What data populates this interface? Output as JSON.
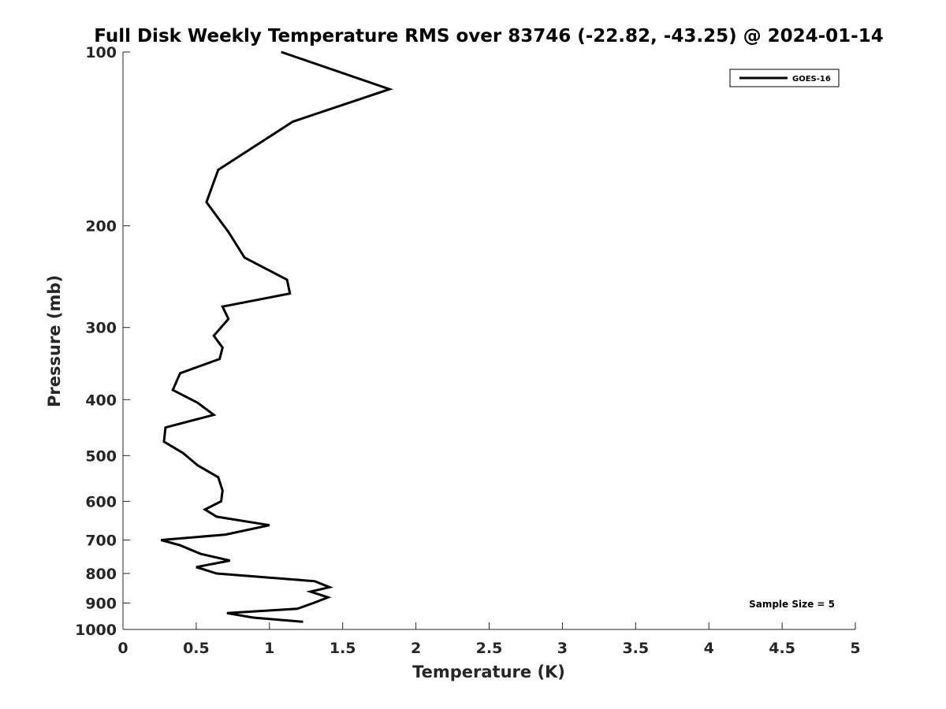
{
  "chart_data": {
    "type": "line",
    "title": "Full Disk Weekly Temperature RMS over 83746 (-22.82, -43.25) @ 2024-01-14",
    "xlabel": "Temperature (K)",
    "ylabel": "Pressure (mb)",
    "xlim": [
      0,
      5
    ],
    "ylim": [
      100,
      1000
    ],
    "y_scale": "log",
    "y_reversed": true,
    "grid": false,
    "legend_position": "top-right",
    "x_ticks": [
      "0",
      "0.5",
      "1",
      "1.5",
      "2",
      "2.5",
      "3",
      "3.5",
      "4",
      "4.5",
      "5"
    ],
    "y_ticks": [
      "100",
      "200",
      "300",
      "400",
      "500",
      "600",
      "700",
      "800",
      "900",
      "1000"
    ],
    "annotation": "Sample Size = 5",
    "series": [
      {
        "name": "GOES-16",
        "color": "#000000",
        "x": [
          1.08,
          1.82,
          1.16,
          0.65,
          0.57,
          0.72,
          0.83,
          1.12,
          1.14,
          0.68,
          0.72,
          0.62,
          0.68,
          0.66,
          0.39,
          0.34,
          0.51,
          0.62,
          0.29,
          0.28,
          0.41,
          0.51,
          0.65,
          0.68,
          0.67,
          0.56,
          0.64,
          1.0,
          0.7,
          0.26,
          0.39,
          0.53,
          0.73,
          0.5,
          0.64,
          1.31,
          1.41,
          1.28,
          1.4,
          1.3,
          1.19,
          0.71,
          0.89,
          1.23
        ],
        "y": [
          100,
          116,
          132,
          160,
          182,
          205,
          227,
          248,
          262,
          276,
          290,
          310,
          325,
          340,
          360,
          385,
          405,
          425,
          447,
          473,
          495,
          520,
          545,
          575,
          600,
          620,
          638,
          660,
          685,
          700,
          715,
          740,
          760,
          780,
          800,
          825,
          845,
          860,
          880,
          900,
          921,
          937,
          954,
          970
        ]
      }
    ]
  }
}
